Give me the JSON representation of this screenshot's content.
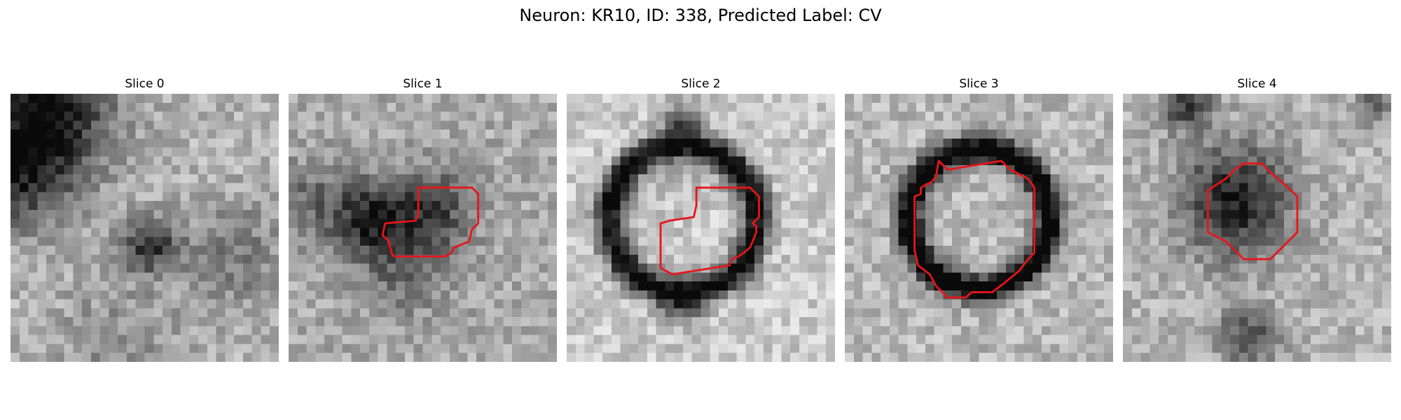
{
  "figure": {
    "title": "Neuron: KR10, ID: 338, Predicted Label: CV"
  },
  "panels": [
    {
      "title": "Slice 0"
    },
    {
      "title": "Slice 1"
    },
    {
      "title": "Slice 2"
    },
    {
      "title": "Slice 3"
    },
    {
      "title": "Slice 4"
    }
  ],
  "colors": {
    "contour": "#e8151b",
    "background": "#ffffff"
  }
}
